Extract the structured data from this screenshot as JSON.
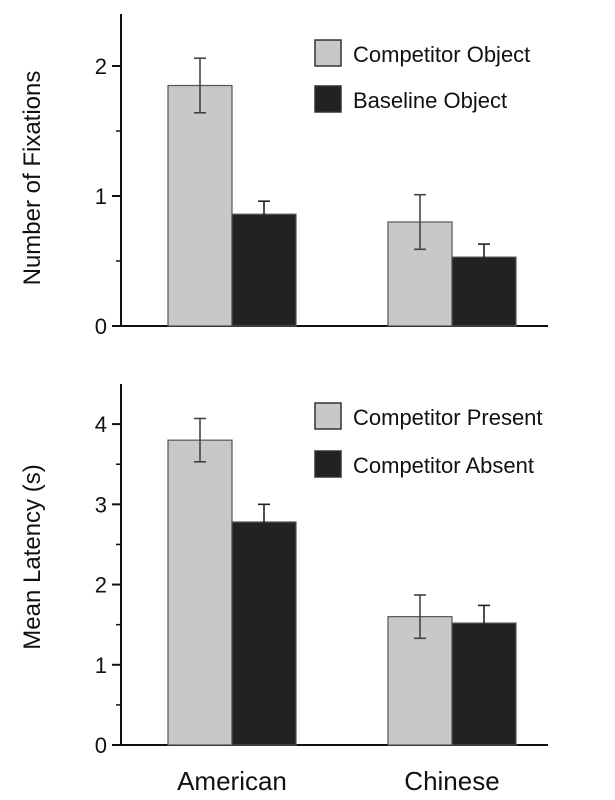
{
  "chart_data": [
    {
      "type": "bar",
      "title": "",
      "xlabel": "",
      "ylabel": "Number of Fixations",
      "ylim": [
        0,
        2.4
      ],
      "yticks": [
        "0",
        "1",
        "2"
      ],
      "yticks_values": [
        0,
        1,
        2
      ],
      "categories": [
        "American",
        "Chinese"
      ],
      "show_category_labels": false,
      "grid": false,
      "legend_position": "top-right",
      "series": [
        {
          "name": "Competitor Object",
          "color": "#c8c8c8",
          "values": [
            1.85,
            0.8
          ],
          "errors": [
            0.21,
            0.21
          ]
        },
        {
          "name": "Baseline Object",
          "color": "#222222",
          "values": [
            0.86,
            0.53
          ],
          "errors": [
            0.1,
            0.1
          ]
        }
      ]
    },
    {
      "type": "bar",
      "title": "",
      "xlabel": "",
      "ylabel": "Mean Latency (s)",
      "ylim": [
        0,
        4.5
      ],
      "yticks": [
        "0",
        "1",
        "2",
        "3",
        "4"
      ],
      "yticks_values": [
        0,
        1,
        2,
        3,
        4
      ],
      "categories": [
        "American",
        "Chinese"
      ],
      "show_category_labels": true,
      "grid": false,
      "legend_position": "top-right",
      "series": [
        {
          "name": "Competitor Present",
          "color": "#c8c8c8",
          "values": [
            3.8,
            1.6
          ],
          "errors": [
            0.27,
            0.27
          ]
        },
        {
          "name": "Competitor Absent",
          "color": "#222222",
          "values": [
            2.78,
            1.52
          ],
          "errors": [
            0.22,
            0.22
          ]
        }
      ]
    }
  ]
}
